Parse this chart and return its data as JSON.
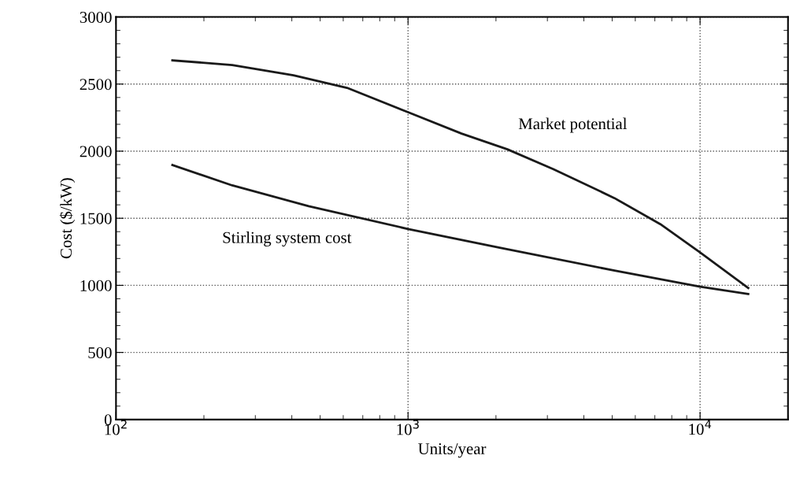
{
  "chart_data": {
    "type": "line",
    "xlabel": "Units/year",
    "ylabel": "Cost ($/kW)",
    "log": "x",
    "xlim": [
      100,
      20000
    ],
    "ylim": [
      0,
      3000
    ],
    "xticks": [
      {
        "value": 100,
        "label": "10$^{2}$"
      },
      {
        "value": 1000,
        "label": "10$^{3}$"
      },
      {
        "value": 10000,
        "label": "10$^{4}$"
      }
    ],
    "yticks": [
      0,
      500,
      1000,
      1500,
      2000,
      2500,
      3000
    ],
    "grid": true,
    "marker": "none",
    "line_style": "solid",
    "series": [
      {
        "name": "Market potential",
        "color": "#1a1a1a",
        "x": [
          156,
          250,
          405,
          618,
          1000,
          1524,
          2188,
          3140,
          5093,
          7310,
          10000,
          14620
        ],
        "values": [
          2677,
          2642,
          2566,
          2472,
          2290,
          2131,
          2014,
          1867,
          1650,
          1456,
          1245,
          980
        ]
      },
      {
        "name": "Stirling system cost",
        "color": "#1a1a1a",
        "x": [
          156,
          250,
          457,
          1000,
          2061,
          5093,
          10000,
          14620
        ],
        "values": [
          1897,
          1745,
          1590,
          1420,
          1280,
          1110,
          990,
          935
        ]
      }
    ]
  }
}
